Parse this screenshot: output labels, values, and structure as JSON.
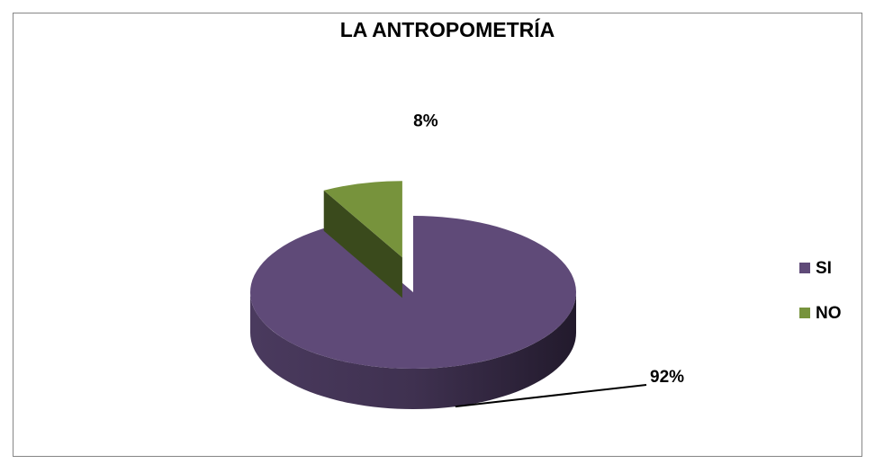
{
  "chart_data": {
    "type": "pie",
    "title": "LA ANTROPOMETRÍA",
    "categories": [
      "SI",
      "NO"
    ],
    "values": [
      92,
      8
    ],
    "value_labels": [
      "92%",
      "8%"
    ],
    "colors": [
      "#5f4a78",
      "#77933c"
    ],
    "legend": "right",
    "explode": [
      false,
      true
    ]
  }
}
